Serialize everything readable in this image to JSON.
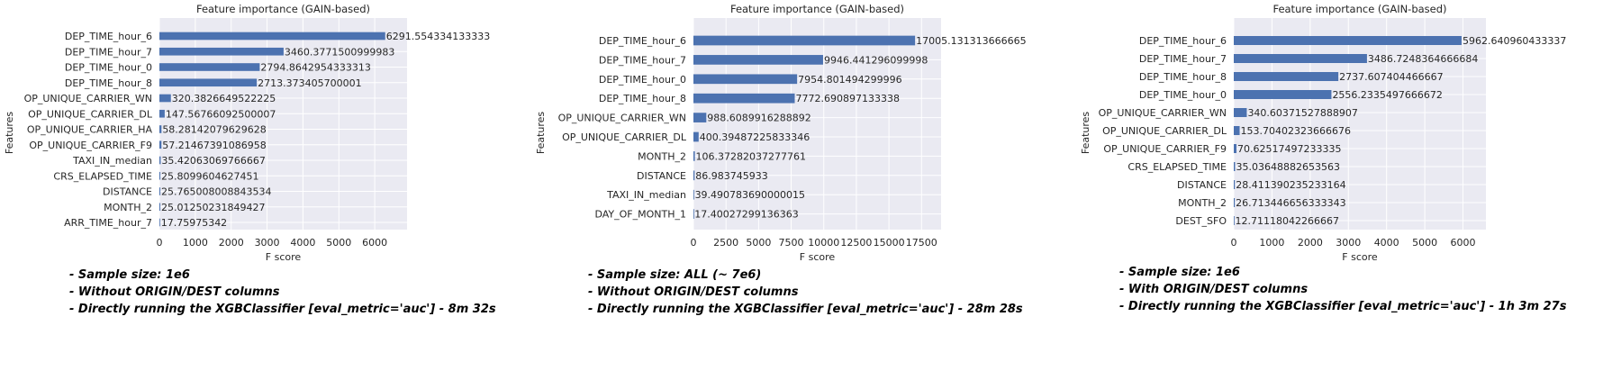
{
  "chart_data": [
    {
      "type": "bar",
      "orientation": "horizontal",
      "title": "Feature importance (GAIN-based)",
      "xlabel": "F score",
      "ylabel": "Features",
      "xlim": [
        0,
        6900
      ],
      "xticks": [
        0,
        1000,
        2000,
        3000,
        4000,
        5000,
        6000
      ],
      "grid": true,
      "categories": [
        "DEP_TIME_hour_6",
        "DEP_TIME_hour_7",
        "DEP_TIME_hour_0",
        "DEP_TIME_hour_8",
        "OP_UNIQUE_CARRIER_WN",
        "OP_UNIQUE_CARRIER_DL",
        "OP_UNIQUE_CARRIER_HA",
        "OP_UNIQUE_CARRIER_F9",
        "TAXI_IN_median",
        "CRS_ELAPSED_TIME",
        "DISTANCE",
        "MONTH_2",
        "ARR_TIME_hour_7"
      ],
      "values": [
        6291.554334133333,
        3460.3771500999983,
        2794.8642954333313,
        2713.373405700001,
        320.3826649522225,
        147.56766092500007,
        58.28142079629628,
        57.21467391086958,
        35.42063069766667,
        25.8099604627451,
        25.765008008843534,
        25.01250231849427,
        17.75975342
      ],
      "labels": [
        "6291.554334133333",
        "3460.3771500999983",
        "2794.8642954333313",
        "2713.373405700001",
        "320.3826649522225",
        "147.56766092500007",
        "58.28142079629628",
        "57.21467391086958",
        "35.42063069766667",
        "25.8099604627451",
        "25.765008008843534",
        "25.01250231849427",
        "17.75975342"
      ]
    },
    {
      "type": "bar",
      "orientation": "horizontal",
      "title": "Feature importance (GAIN-based)",
      "xlabel": "F score",
      "ylabel": "Features",
      "xlim": [
        0,
        19000
      ],
      "xticks": [
        0,
        2500,
        5000,
        7500,
        10000,
        12500,
        15000,
        17500
      ],
      "grid": true,
      "categories": [
        "DEP_TIME_hour_6",
        "DEP_TIME_hour_7",
        "DEP_TIME_hour_0",
        "DEP_TIME_hour_8",
        "OP_UNIQUE_CARRIER_WN",
        "OP_UNIQUE_CARRIER_DL",
        "MONTH_2",
        "DISTANCE",
        "TAXI_IN_median",
        "DAY_OF_MONTH_1"
      ],
      "values": [
        17005.131313666665,
        9946.441296099998,
        7954.801494299996,
        7772.690897133338,
        988.6089916288892,
        400.39487225833346,
        106.37282037277761,
        86.983745933,
        39.490783690000015,
        17.40027299136363
      ],
      "labels": [
        "17005.131313666665",
        "9946.441296099998",
        "7954.801494299996",
        "7772.690897133338",
        "988.6089916288892",
        "400.39487225833346",
        "106.37282037277761",
        "86.983745933",
        "39.490783690000015",
        "17.40027299136363"
      ]
    },
    {
      "type": "bar",
      "orientation": "horizontal",
      "title": "Feature importance (GAIN-based)",
      "xlabel": "F score",
      "ylabel": "Features",
      "xlim": [
        0,
        6600
      ],
      "xticks": [
        0,
        1000,
        2000,
        3000,
        4000,
        5000,
        6000
      ],
      "grid": true,
      "categories": [
        "DEP_TIME_hour_6",
        "DEP_TIME_hour_7",
        "DEP_TIME_hour_8",
        "DEP_TIME_hour_0",
        "OP_UNIQUE_CARRIER_WN",
        "OP_UNIQUE_CARRIER_DL",
        "OP_UNIQUE_CARRIER_F9",
        "CRS_ELAPSED_TIME",
        "DISTANCE",
        "MONTH_2",
        "DEST_SFO"
      ],
      "values": [
        5962.640960433337,
        3486.7248364666684,
        2737.607404466667,
        2556.2335497666672,
        340.60371527888907,
        153.70402323666676,
        70.62517497233335,
        35.03648882653563,
        28.411390235233164,
        26.713446656333343,
        12.71118042266667
      ],
      "labels": [
        "5962.640960433337",
        "3486.7248364666684",
        "2737.607404466667",
        "2556.2335497666672",
        "340.60371527888907",
        "153.70402323666676",
        "70.62517497233335",
        "35.03648882653563",
        "28.411390235233164",
        "26.713446656333343",
        "12.71118042266667"
      ]
    }
  ],
  "notes": [
    [
      "- Sample size: 1e6",
      "- Without ORIGIN/DEST columns",
      "- Directly running the XGBClassifier [eval_metric='auc'] - 8m 32s"
    ],
    [
      "- Sample size: ALL (~ 7e6)",
      "- Without ORIGIN/DEST columns",
      "- Directly running the XGBClassifier [eval_metric='auc'] - 28m 28s"
    ],
    [
      "- Sample size: 1e6",
      "- With ORIGIN/DEST columns",
      "- Directly running the XGBClassifier [eval_metric='auc'] - 1h 3m 27s"
    ]
  ],
  "colors": {
    "bar": "#4c72b0",
    "plot_bg": "#eaeaf2",
    "grid": "#ffffff",
    "text": "#262626"
  }
}
